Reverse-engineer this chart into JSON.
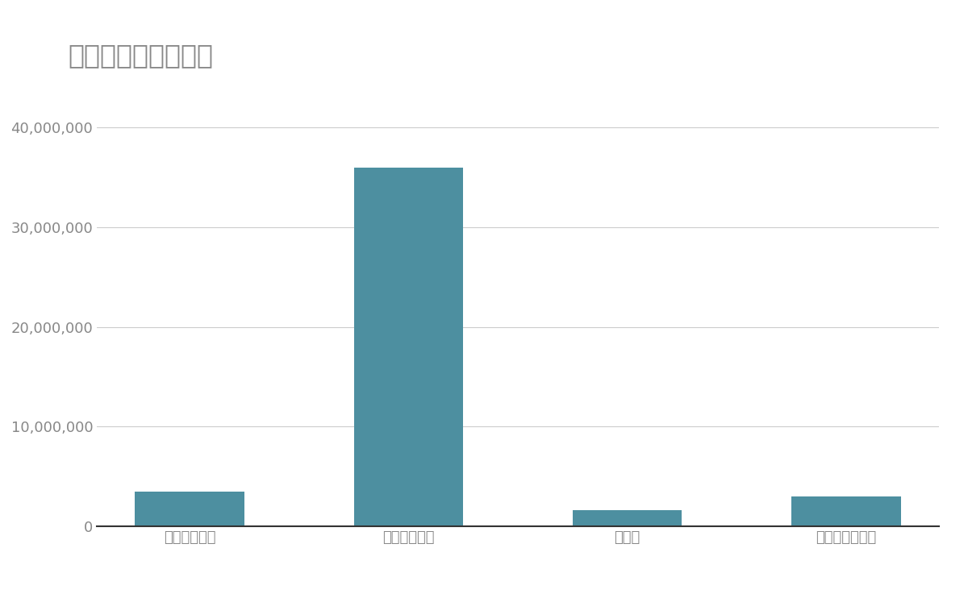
{
  "title": "競合含む年間売上高",
  "categories": [
    "高砂熱学工業",
    "ダイキン工業",
    "大気社",
    "富士通ゼネラル"
  ],
  "values": [
    3500000,
    36000000,
    1600000,
    3000000
  ],
  "bar_color": "#4d8fa0",
  "background_color": "#ffffff",
  "title_fontsize": 24,
  "tick_fontsize": 13,
  "label_fontsize": 13,
  "ylim": [
    0,
    42000000
  ],
  "yticks": [
    0,
    10000000,
    20000000,
    30000000,
    40000000
  ],
  "grid_color": "#cccccc",
  "axis_color": "#333333",
  "title_color": "#888888",
  "tick_color": "#888888"
}
